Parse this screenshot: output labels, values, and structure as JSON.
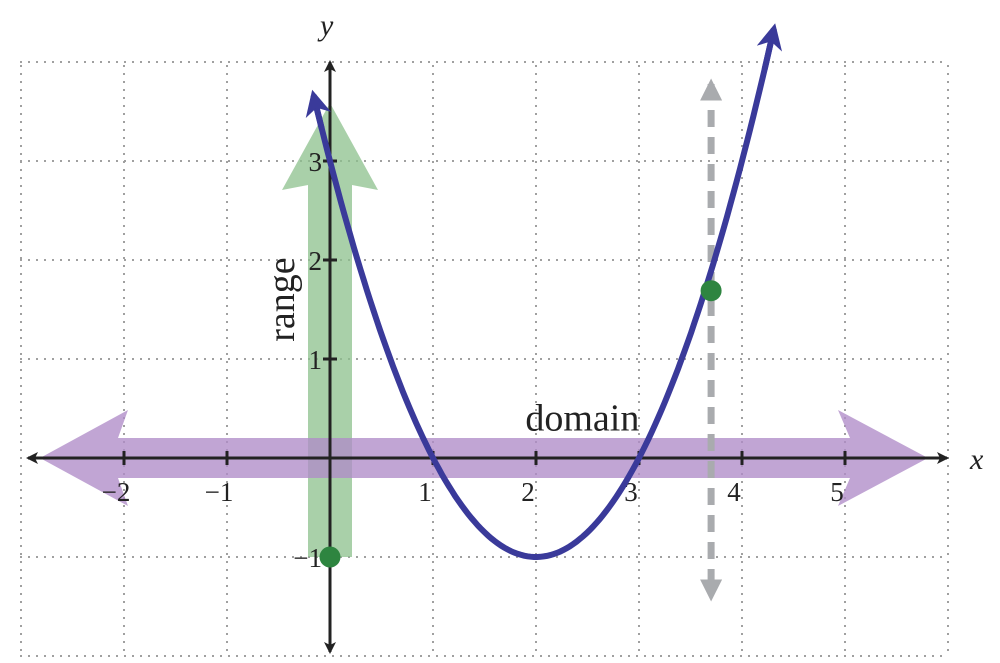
{
  "chart_data": {
    "type": "line",
    "xlabel": "x",
    "ylabel": "y",
    "xlim": [
      -3,
      6
    ],
    "ylim": [
      -2,
      4
    ],
    "grid": true,
    "x_ticks": [
      -2,
      -1,
      1,
      2,
      3,
      4,
      5
    ],
    "x_tick_labels": [
      "−2",
      "−1",
      "1",
      "2",
      "3",
      "4",
      "5"
    ],
    "y_ticks": [
      -1,
      1,
      2,
      3
    ],
    "y_tick_labels": [
      "−1",
      "1",
      "2",
      "3"
    ],
    "series": [
      {
        "function": "x^2 - 4x + 3",
        "x": [
          -0.15,
          0,
          0.5,
          1,
          1.5,
          2,
          2.5,
          3,
          3.5,
          4,
          4.3
        ],
        "y": [
          3.62,
          3,
          1.25,
          0,
          -0.75,
          -1,
          -0.75,
          0,
          1.25,
          3,
          4.29
        ],
        "color": "#3a3a9a"
      }
    ],
    "points": [
      {
        "x": 0,
        "y": -1,
        "color": "#2e8540"
      },
      {
        "x": 3.7,
        "y": 1.69,
        "color": "#2e8540"
      }
    ],
    "vertical_line": {
      "x": 3.7,
      "style": "dashed",
      "color": "#a9abae"
    },
    "range_band": {
      "x": 0,
      "y_from": -1,
      "y_to": "infinity",
      "color": "#8cc08c"
    },
    "domain_band": {
      "y": 0,
      "x_from": "-infinity",
      "x_to": "infinity",
      "color": "#b08cc8"
    },
    "annotations": [
      {
        "text": "domain",
        "x": 2.45,
        "y": 0.28
      },
      {
        "text": "range",
        "x": -0.35,
        "y": 1.6,
        "rotation": -90
      }
    ],
    "colors": {
      "curve": "#3a3a9a",
      "point": "#2e8540",
      "axis": "#222222",
      "grid": "#a0a0a0"
    }
  }
}
